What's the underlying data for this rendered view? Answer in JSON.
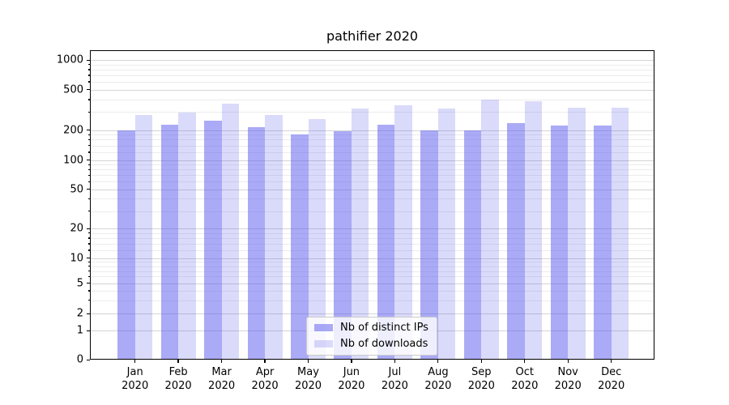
{
  "figure": {
    "background_color": "#ffffff",
    "spine_color": "#000000",
    "grid_major_color": "#d4d4d4",
    "grid_minor_color": "#ececec"
  },
  "chart_data": {
    "type": "bar",
    "title": "pathifier 2020",
    "categories": [
      "Jan 2020",
      "Feb 2020",
      "Mar 2020",
      "Apr 2020",
      "May 2020",
      "Jun 2020",
      "Jul 2020",
      "Aug 2020",
      "Sep 2020",
      "Oct 2020",
      "Nov 2020",
      "Dec 2020"
    ],
    "series": [
      {
        "name": "Nb of distinct IPs",
        "color": "#5555ee",
        "alpha": 0.5,
        "values": [
          200,
          225,
          245,
          215,
          180,
          195,
          225,
          200,
          200,
          235,
          220,
          220
        ]
      },
      {
        "name": "Nb of downloads",
        "color": "#5555ee",
        "alpha": 0.22,
        "values": [
          280,
          295,
          360,
          280,
          255,
          325,
          350,
          325,
          395,
          385,
          330,
          330
        ]
      }
    ],
    "xlabel": "",
    "ylabel": "",
    "yscale": "symlog",
    "ylim": [
      0,
      1250
    ],
    "y_major_ticks": [
      0,
      1,
      2,
      5,
      10,
      20,
      50,
      100,
      200,
      500,
      1000
    ],
    "y_minor_ticks": [
      3,
      4,
      6,
      7,
      8,
      9,
      12,
      14,
      16,
      18,
      30,
      40,
      60,
      70,
      80,
      90,
      120,
      140,
      160,
      180,
      300,
      400,
      600,
      700,
      800,
      900
    ],
    "grid": "both",
    "legend_position": "lower center"
  }
}
